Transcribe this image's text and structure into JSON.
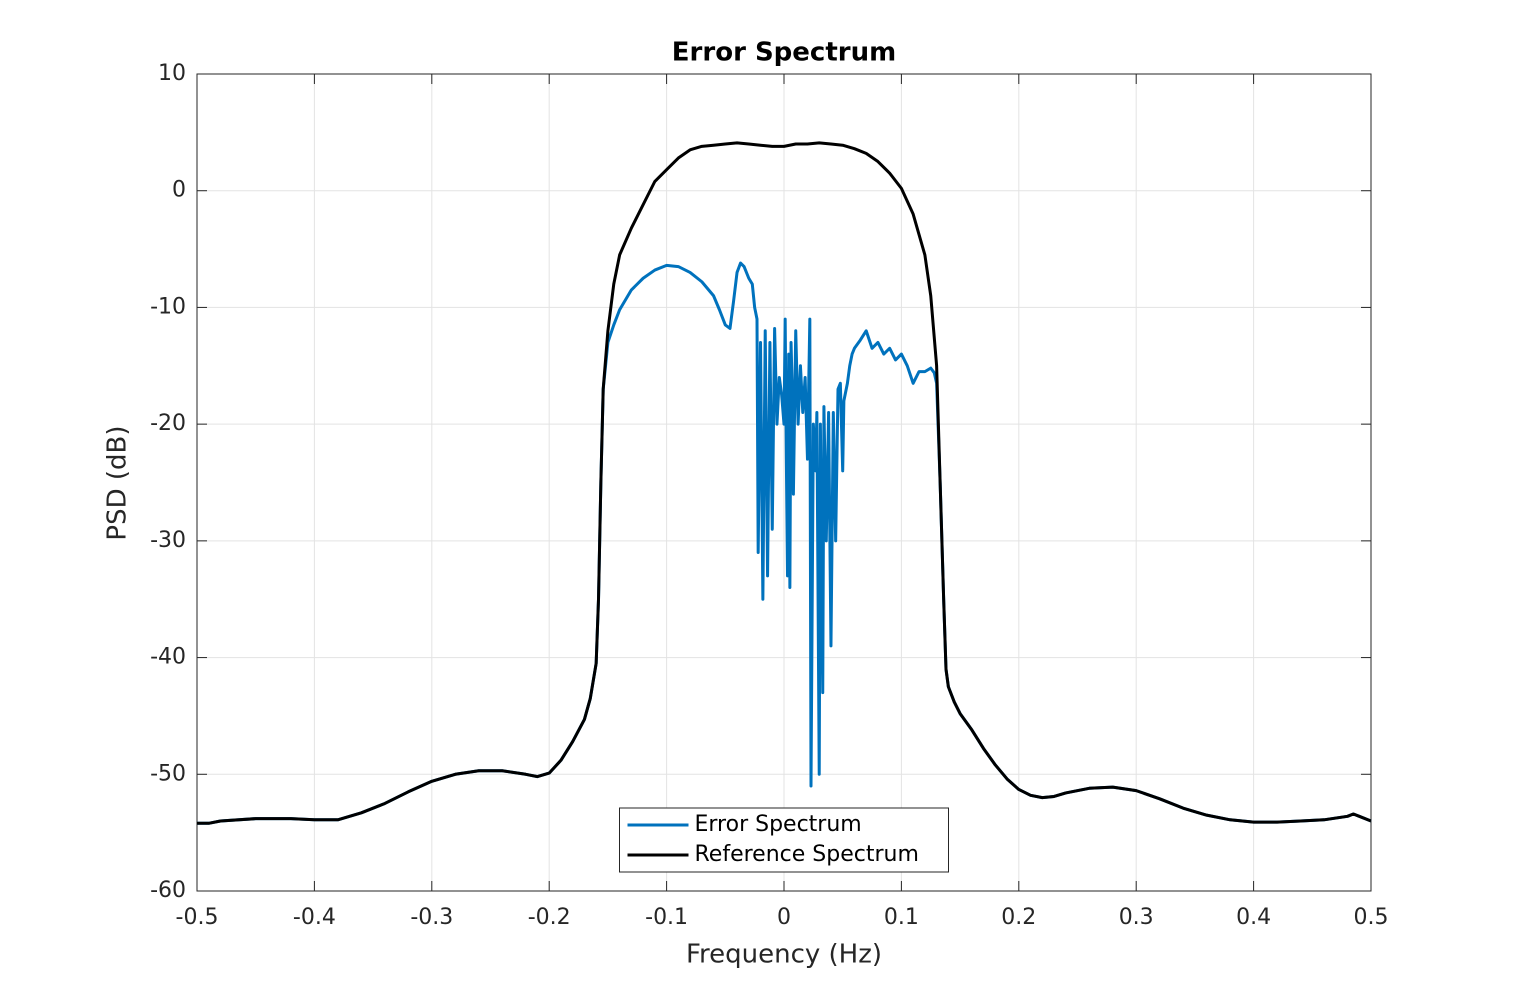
{
  "chart_data": {
    "type": "line",
    "title": "Error Spectrum",
    "xlabel": "Frequency (Hz)",
    "ylabel": "PSD (dB)",
    "xlim": [
      -0.5,
      0.5
    ],
    "xticks": [
      -0.5,
      -0.4,
      -0.3,
      -0.2,
      -0.1,
      0,
      0.1,
      0.2,
      0.3,
      0.4,
      0.5
    ],
    "ylim": [
      -60,
      10
    ],
    "yticks": [
      -60,
      -50,
      -40,
      -30,
      -20,
      -10,
      0,
      10
    ],
    "grid": true,
    "legend": "lower center",
    "series": [
      {
        "name": "Error Spectrum",
        "color": "#0072BD",
        "x": [
          -0.5,
          -0.49,
          -0.48,
          -0.45,
          -0.42,
          -0.4,
          -0.38,
          -0.36,
          -0.34,
          -0.32,
          -0.3,
          -0.28,
          -0.26,
          -0.24,
          -0.22,
          -0.21,
          -0.2,
          -0.19,
          -0.18,
          -0.17,
          -0.165,
          -0.16,
          -0.158,
          -0.156,
          -0.154,
          -0.15,
          -0.145,
          -0.14,
          -0.13,
          -0.12,
          -0.11,
          -0.1,
          -0.09,
          -0.08,
          -0.07,
          -0.06,
          -0.055,
          -0.05,
          -0.046,
          -0.043,
          -0.04,
          -0.037,
          -0.034,
          -0.03,
          -0.027,
          -0.025,
          -0.023,
          -0.022,
          -0.02,
          -0.018,
          -0.016,
          -0.014,
          -0.012,
          -0.01,
          -0.008,
          -0.006,
          -0.004,
          -0.002,
          0,
          0.001,
          0.002,
          0.003,
          0.004,
          0.005,
          0.006,
          0.007,
          0.008,
          0.01,
          0.012,
          0.014,
          0.016,
          0.018,
          0.02,
          0.022,
          0.023,
          0.025,
          0.027,
          0.028,
          0.03,
          0.031,
          0.033,
          0.034,
          0.036,
          0.038,
          0.04,
          0.042,
          0.044,
          0.046,
          0.048,
          0.05,
          0.051,
          0.054,
          0.056,
          0.058,
          0.06,
          0.065,
          0.07,
          0.075,
          0.08,
          0.085,
          0.09,
          0.095,
          0.1,
          0.105,
          0.11,
          0.115,
          0.12,
          0.125,
          0.128,
          0.13,
          0.133,
          0.136,
          0.138,
          0.14,
          0.145,
          0.15,
          0.16,
          0.17,
          0.18,
          0.19,
          0.2,
          0.21,
          0.22,
          0.23,
          0.24,
          0.26,
          0.28,
          0.3,
          0.32,
          0.34,
          0.36,
          0.38,
          0.4,
          0.42,
          0.44,
          0.46,
          0.48,
          0.485,
          0.49,
          0.5
        ],
        "values": [
          -54.2,
          -54.2,
          -54.0,
          -53.8,
          -53.8,
          -53.9,
          -53.9,
          -53.3,
          -52.5,
          -51.5,
          -50.6,
          -50.0,
          -49.7,
          -49.7,
          -50.0,
          -50.2,
          -49.9,
          -48.8,
          -47.2,
          -45.3,
          -43.5,
          -40.5,
          -35,
          -25,
          -17,
          -13,
          -11.5,
          -10.2,
          -8.5,
          -7.5,
          -6.8,
          -6.4,
          -6.5,
          -7.0,
          -7.8,
          -9.0,
          -10.2,
          -11.5,
          -11.8,
          -9.5,
          -7,
          -6.2,
          -6.5,
          -7.5,
          -8,
          -10,
          -11,
          -31,
          -13,
          -35,
          -12,
          -33,
          -13,
          -29,
          -11.8,
          -20,
          -16,
          -17.5,
          -20,
          -11,
          -23,
          -33,
          -14,
          -34,
          -13,
          -17,
          -26,
          -12,
          -20,
          -15,
          -19,
          -16,
          -23,
          -11,
          -51,
          -20,
          -24,
          -19,
          -50,
          -20,
          -43,
          -18.5,
          -30,
          -19,
          -39,
          -19,
          -30,
          -17,
          -16.5,
          -24,
          -18,
          -16.5,
          -15,
          -14,
          -13.5,
          -12.8,
          -12,
          -13.5,
          -13,
          -14,
          -13.5,
          -14.5,
          -14,
          -15,
          -16.5,
          -15.5,
          -15.5,
          -15.2,
          -15.6,
          -16.5,
          -25,
          -35,
          -41,
          -42.5,
          -43.8,
          -44.8,
          -46.2,
          -47.8,
          -49.2,
          -50.4,
          -51.3,
          -51.8,
          -52.0,
          -51.9,
          -51.6,
          -51.2,
          -51.1,
          -51.4,
          -52.1,
          -52.9,
          -53.5,
          -53.9,
          -54.1,
          -54.1,
          -54.0,
          -53.9,
          -53.6,
          -53.4,
          -53.6,
          -54.0
        ]
      },
      {
        "name": "Reference Spectrum",
        "color": "#000000",
        "x": [
          -0.5,
          -0.49,
          -0.48,
          -0.45,
          -0.42,
          -0.4,
          -0.38,
          -0.36,
          -0.34,
          -0.32,
          -0.3,
          -0.28,
          -0.26,
          -0.24,
          -0.22,
          -0.21,
          -0.2,
          -0.19,
          -0.18,
          -0.17,
          -0.165,
          -0.16,
          -0.158,
          -0.156,
          -0.154,
          -0.15,
          -0.145,
          -0.14,
          -0.13,
          -0.12,
          -0.11,
          -0.1,
          -0.09,
          -0.08,
          -0.07,
          -0.06,
          -0.05,
          -0.04,
          -0.03,
          -0.02,
          -0.01,
          0,
          0.01,
          0.02,
          0.03,
          0.04,
          0.05,
          0.06,
          0.07,
          0.08,
          0.09,
          0.1,
          0.11,
          0.12,
          0.125,
          0.13,
          0.133,
          0.136,
          0.138,
          0.14,
          0.145,
          0.15,
          0.16,
          0.17,
          0.18,
          0.19,
          0.2,
          0.21,
          0.22,
          0.23,
          0.24,
          0.26,
          0.28,
          0.3,
          0.32,
          0.34,
          0.36,
          0.38,
          0.4,
          0.42,
          0.44,
          0.46,
          0.48,
          0.485,
          0.49,
          0.5
        ],
        "values": [
          -54.2,
          -54.2,
          -54.0,
          -53.8,
          -53.8,
          -53.9,
          -53.9,
          -53.3,
          -52.5,
          -51.5,
          -50.6,
          -50.0,
          -49.7,
          -49.7,
          -50.0,
          -50.2,
          -49.9,
          -48.8,
          -47.2,
          -45.3,
          -43.5,
          -40.5,
          -35,
          -25,
          -17,
          -12,
          -8,
          -5.5,
          -3.2,
          -1.2,
          0.8,
          1.8,
          2.8,
          3.5,
          3.8,
          3.9,
          4.0,
          4.1,
          4.0,
          3.9,
          3.8,
          3.8,
          4.0,
          4.0,
          4.1,
          4.0,
          3.9,
          3.6,
          3.2,
          2.5,
          1.5,
          0.2,
          -2,
          -5.5,
          -9,
          -15,
          -25,
          -35,
          -41,
          -42.5,
          -43.8,
          -44.8,
          -46.2,
          -47.8,
          -49.2,
          -50.4,
          -51.3,
          -51.8,
          -52.0,
          -51.9,
          -51.6,
          -51.2,
          -51.1,
          -51.4,
          -52.1,
          -52.9,
          -53.5,
          -53.9,
          -54.1,
          -54.1,
          -54.0,
          -53.9,
          -53.6,
          -53.4,
          -53.6,
          -54.0
        ]
      }
    ]
  }
}
